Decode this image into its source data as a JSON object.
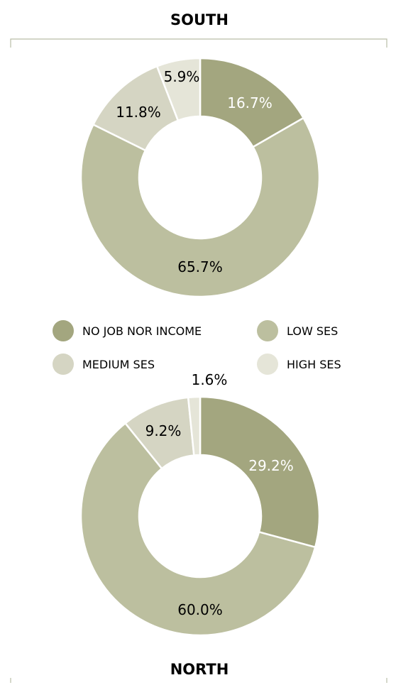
{
  "colors": {
    "no_job": "#a3a67f",
    "low_ses": "#bcbf9f",
    "medium_ses": "#d5d5c3",
    "high_ses": "#e5e5d8",
    "frame": "#b9bda6"
  },
  "legend": [
    {
      "label": "NO JOB NOR INCOME",
      "color": "#a3a67f"
    },
    {
      "label": "LOW SES",
      "color": "#bcbf9f"
    },
    {
      "label": "MEDIUM SES",
      "color": "#d5d5c3"
    },
    {
      "label": "HIGH SES",
      "color": "#e5e5d8"
    }
  ],
  "chart_data": [
    {
      "type": "pie",
      "title": "SOUTH",
      "categories": [
        "NO JOB NOR INCOME",
        "LOW SES",
        "MEDIUM SES",
        "HIGH SES"
      ],
      "values": [
        16.7,
        65.7,
        11.8,
        5.9
      ],
      "labels": [
        "16.7%",
        "65.7%",
        "11.8%",
        "5.9%"
      ]
    },
    {
      "type": "pie",
      "title": "NORTH",
      "categories": [
        "NO JOB NOR INCOME",
        "LOW SES",
        "MEDIUM SES",
        "HIGH SES"
      ],
      "values": [
        29.2,
        60.0,
        9.2,
        1.6
      ],
      "labels": [
        "29.2%",
        "60.0%",
        "9.2%",
        "1.6%"
      ]
    }
  ]
}
